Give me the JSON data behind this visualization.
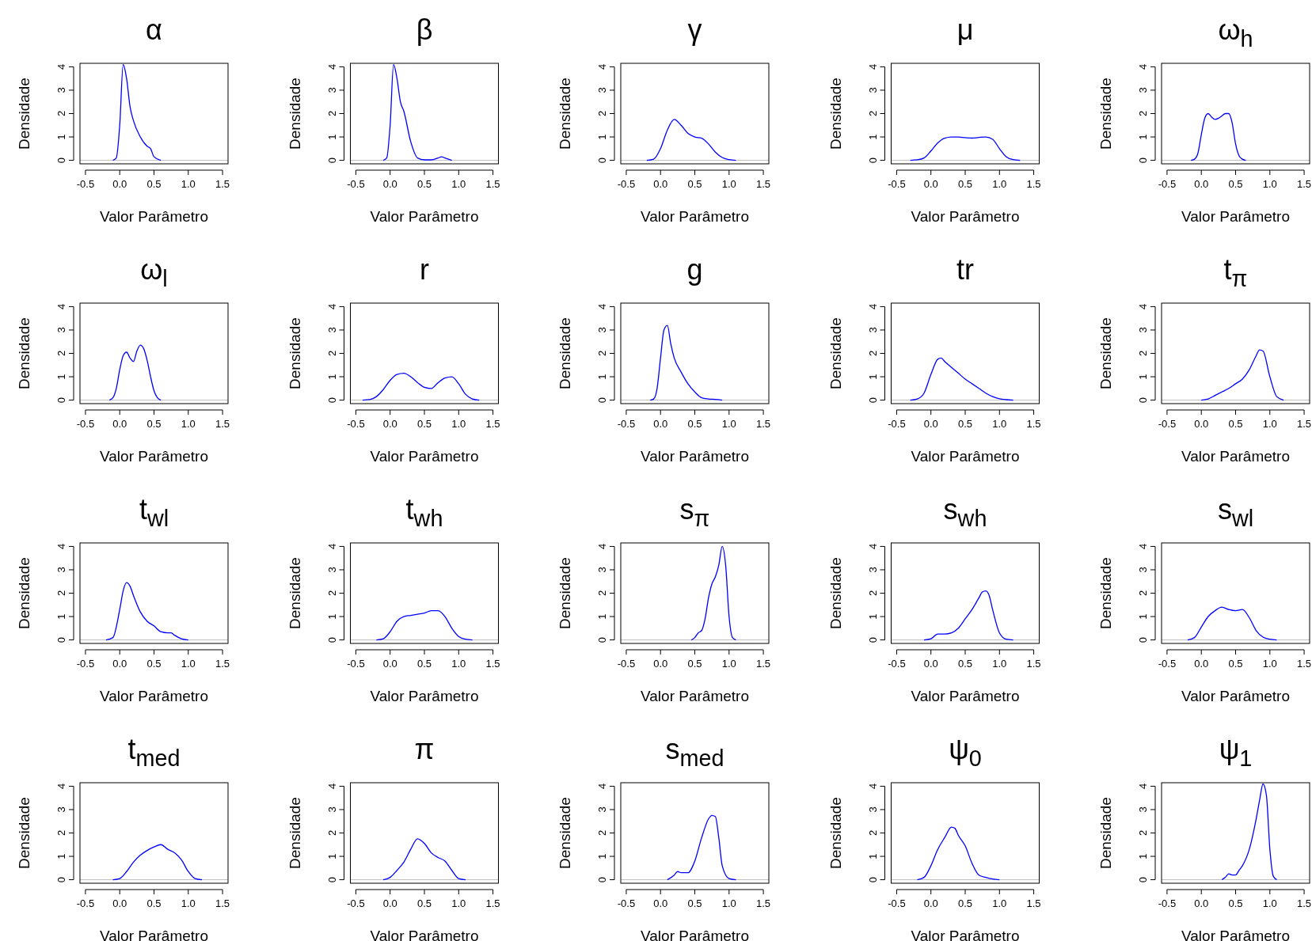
{
  "chart_data": [
    {
      "type": "line",
      "title": "α",
      "xlabel": "Valor Parâmetro",
      "ylabel": "Densidade",
      "x": [
        -0.1,
        -0.05,
        0,
        0.05,
        0.1,
        0.15,
        0.2,
        0.3,
        0.4,
        0.45,
        0.5,
        0.6
      ],
      "series": [
        {
          "color": "#0000ff",
          "values": [
            0,
            0.1,
            1.5,
            4.1,
            3.5,
            2.3,
            1.7,
            1.0,
            0.6,
            0.5,
            0.15,
            0
          ]
        }
      ],
      "xlim": [
        -0.58,
        1.58
      ],
      "ylim": [
        -0.15,
        4.15
      ],
      "xticks": [
        {
          "value": -0.5,
          "label": "-0.5"
        },
        {
          "value": 0,
          "label": "0.0"
        },
        {
          "value": 0.5,
          "label": "0.5"
        },
        {
          "value": 1,
          "label": "1.0"
        },
        {
          "value": 1.5,
          "label": "1.5"
        }
      ],
      "yticks": [
        0,
        1,
        2,
        3,
        4
      ],
      "ref_lines": [
        {
          "axis": "y",
          "value": 0,
          "color": "#bebebe"
        }
      ]
    },
    {
      "type": "line",
      "title": "β",
      "xlabel": "Valor Parâmetro",
      "ylabel": "Densidade",
      "x": [
        -0.1,
        -0.05,
        0,
        0.05,
        0.1,
        0.15,
        0.2,
        0.3,
        0.4,
        0.5,
        0.6,
        0.7,
        0.75,
        0.8,
        0.9
      ],
      "series": [
        {
          "color": "#0000ff",
          "values": [
            0,
            0.1,
            1.5,
            4.1,
            3.5,
            2.5,
            2.1,
            0.8,
            0.1,
            0.02,
            0.02,
            0.1,
            0.15,
            0.1,
            0
          ]
        }
      ],
      "xlim": [
        -0.58,
        1.58
      ],
      "ylim": [
        -0.15,
        4.15
      ],
      "xticks": [
        {
          "value": -0.5,
          "label": "-0.5"
        },
        {
          "value": 0,
          "label": "0.0"
        },
        {
          "value": 0.5,
          "label": "0.5"
        },
        {
          "value": 1,
          "label": "1.0"
        },
        {
          "value": 1.5,
          "label": "1.5"
        }
      ],
      "yticks": [
        0,
        1,
        2,
        3,
        4
      ],
      "ref_lines": [
        {
          "axis": "y",
          "value": 0,
          "color": "#bebebe"
        }
      ]
    },
    {
      "type": "line",
      "title": "γ",
      "xlabel": "Valor Parâmetro",
      "ylabel": "Densidade",
      "x": [
        -0.2,
        -0.1,
        0,
        0.1,
        0.2,
        0.3,
        0.4,
        0.5,
        0.6,
        0.7,
        0.8,
        0.9,
        1.0,
        1.1
      ],
      "series": [
        {
          "color": "#0000ff",
          "values": [
            0,
            0.05,
            0.5,
            1.3,
            1.75,
            1.5,
            1.15,
            1.0,
            0.95,
            0.7,
            0.35,
            0.12,
            0.03,
            0
          ]
        }
      ],
      "xlim": [
        -0.58,
        1.58
      ],
      "ylim": [
        -0.15,
        4.15
      ],
      "xticks": [
        {
          "value": -0.5,
          "label": "-0.5"
        },
        {
          "value": 0,
          "label": "0.0"
        },
        {
          "value": 0.5,
          "label": "0.5"
        },
        {
          "value": 1,
          "label": "1.0"
        },
        {
          "value": 1.5,
          "label": "1.5"
        }
      ],
      "yticks": [
        0,
        1,
        2,
        3,
        4
      ],
      "ref_lines": [
        {
          "axis": "y",
          "value": 0,
          "color": "#bebebe"
        }
      ]
    },
    {
      "type": "line",
      "title": "μ",
      "xlabel": "Valor Parâmetro",
      "ylabel": "Densidade",
      "x": [
        -0.3,
        -0.2,
        -0.1,
        0,
        0.1,
        0.2,
        0.3,
        0.4,
        0.5,
        0.6,
        0.7,
        0.8,
        0.9,
        1.0,
        1.1,
        1.2,
        1.3
      ],
      "series": [
        {
          "color": "#0000ff",
          "values": [
            0,
            0.02,
            0.1,
            0.4,
            0.75,
            0.95,
            1.0,
            1.0,
            0.97,
            0.95,
            0.98,
            1.0,
            0.9,
            0.5,
            0.15,
            0.03,
            0
          ]
        }
      ],
      "xlim": [
        -0.58,
        1.58
      ],
      "ylim": [
        -0.15,
        4.15
      ],
      "xticks": [
        {
          "value": -0.5,
          "label": "-0.5"
        },
        {
          "value": 0,
          "label": "0.0"
        },
        {
          "value": 0.5,
          "label": "0.5"
        },
        {
          "value": 1,
          "label": "1.0"
        },
        {
          "value": 1.5,
          "label": "1.5"
        }
      ],
      "yticks": [
        0,
        1,
        2,
        3,
        4
      ],
      "ref_lines": [
        {
          "axis": "y",
          "value": 0,
          "color": "#bebebe"
        }
      ]
    },
    {
      "type": "line",
      "title": "ω$_{h}$",
      "xlabel": "Valor Parâmetro",
      "ylabel": "Densidade",
      "x": [
        -0.15,
        -0.1,
        -0.05,
        0,
        0.05,
        0.1,
        0.15,
        0.2,
        0.25,
        0.3,
        0.35,
        0.4,
        0.45,
        0.5,
        0.55,
        0.6,
        0.65
      ],
      "series": [
        {
          "color": "#0000ff",
          "values": [
            0,
            0.05,
            0.3,
            1.1,
            1.8,
            2.0,
            1.85,
            1.75,
            1.8,
            1.9,
            2.0,
            2.0,
            1.6,
            0.7,
            0.2,
            0.05,
            0
          ]
        }
      ],
      "xlim": [
        -0.58,
        1.58
      ],
      "ylim": [
        -0.15,
        4.15
      ],
      "xticks": [
        {
          "value": -0.5,
          "label": "-0.5"
        },
        {
          "value": 0,
          "label": "0.0"
        },
        {
          "value": 0.5,
          "label": "0.5"
        },
        {
          "value": 1,
          "label": "1.0"
        },
        {
          "value": 1.5,
          "label": "1.5"
        }
      ],
      "yticks": [
        0,
        1,
        2,
        3,
        4
      ],
      "ref_lines": [
        {
          "axis": "y",
          "value": 0,
          "color": "#bebebe"
        }
      ]
    },
    {
      "type": "line",
      "title": "ω$_{l}$",
      "xlabel": "Valor Parâmetro",
      "ylabel": "Densidade",
      "x": [
        -0.15,
        -0.1,
        -0.05,
        0,
        0.05,
        0.1,
        0.15,
        0.2,
        0.25,
        0.3,
        0.35,
        0.4,
        0.45,
        0.5,
        0.55,
        0.6
      ],
      "series": [
        {
          "color": "#0000ff",
          "values": [
            0,
            0.1,
            0.5,
            1.3,
            1.9,
            2.05,
            1.8,
            1.65,
            2.1,
            2.35,
            2.2,
            1.7,
            1.0,
            0.4,
            0.1,
            0
          ]
        }
      ],
      "xlim": [
        -0.58,
        1.58
      ],
      "ylim": [
        -0.15,
        4.15
      ],
      "xticks": [
        {
          "value": -0.5,
          "label": "-0.5"
        },
        {
          "value": 0,
          "label": "0.0"
        },
        {
          "value": 0.5,
          "label": "0.5"
        },
        {
          "value": 1,
          "label": "1.0"
        },
        {
          "value": 1.5,
          "label": "1.5"
        }
      ],
      "yticks": [
        0,
        1,
        2,
        3,
        4
      ],
      "ref_lines": [
        {
          "axis": "y",
          "value": 0,
          "color": "#bebebe"
        }
      ]
    },
    {
      "type": "line",
      "title": "r",
      "xlabel": "Valor Parâmetro",
      "ylabel": "Densidade",
      "x": [
        -0.4,
        -0.3,
        -0.2,
        -0.1,
        0,
        0.1,
        0.2,
        0.3,
        0.4,
        0.5,
        0.6,
        0.7,
        0.8,
        0.9,
        1.0,
        1.1,
        1.2,
        1.3
      ],
      "series": [
        {
          "color": "#0000ff",
          "values": [
            0,
            0.02,
            0.15,
            0.45,
            0.85,
            1.1,
            1.15,
            1.0,
            0.75,
            0.55,
            0.5,
            0.75,
            0.95,
            1.0,
            0.7,
            0.25,
            0.05,
            0
          ]
        }
      ],
      "xlim": [
        -0.58,
        1.58
      ],
      "ylim": [
        -0.15,
        4.15
      ],
      "xticks": [
        {
          "value": -0.5,
          "label": "-0.5"
        },
        {
          "value": 0,
          "label": "0.0"
        },
        {
          "value": 0.5,
          "label": "0.5"
        },
        {
          "value": 1,
          "label": "1.0"
        },
        {
          "value": 1.5,
          "label": "1.5"
        }
      ],
      "yticks": [
        0,
        1,
        2,
        3,
        4
      ],
      "ref_lines": [
        {
          "axis": "y",
          "value": 0,
          "color": "#bebebe"
        }
      ]
    },
    {
      "type": "line",
      "title": "g",
      "xlabel": "Valor Parâmetro",
      "ylabel": "Densidade",
      "x": [
        -0.15,
        -0.1,
        -0.05,
        0,
        0.05,
        0.1,
        0.15,
        0.2,
        0.3,
        0.4,
        0.5,
        0.6,
        0.7,
        0.8,
        0.9
      ],
      "series": [
        {
          "color": "#0000ff",
          "values": [
            0,
            0.05,
            0.5,
            1.8,
            3.0,
            3.2,
            2.4,
            1.8,
            1.2,
            0.7,
            0.35,
            0.1,
            0.05,
            0.03,
            0
          ]
        }
      ],
      "xlim": [
        -0.58,
        1.58
      ],
      "ylim": [
        -0.15,
        4.15
      ],
      "xticks": [
        {
          "value": -0.5,
          "label": "-0.5"
        },
        {
          "value": 0,
          "label": "0.0"
        },
        {
          "value": 0.5,
          "label": "0.5"
        },
        {
          "value": 1,
          "label": "1.0"
        },
        {
          "value": 1.5,
          "label": "1.5"
        }
      ],
      "yticks": [
        0,
        1,
        2,
        3,
        4
      ],
      "ref_lines": [
        {
          "axis": "y",
          "value": 0,
          "color": "#bebebe"
        }
      ]
    },
    {
      "type": "line",
      "title": "tr",
      "xlabel": "Valor Parâmetro",
      "ylabel": "Densidade",
      "x": [
        -0.3,
        -0.2,
        -0.1,
        0,
        0.1,
        0.15,
        0.2,
        0.3,
        0.4,
        0.5,
        0.6,
        0.7,
        0.8,
        0.9,
        1.0,
        1.1,
        1.2
      ],
      "series": [
        {
          "color": "#0000ff",
          "values": [
            0,
            0.05,
            0.3,
            1.1,
            1.75,
            1.8,
            1.65,
            1.4,
            1.15,
            0.9,
            0.7,
            0.5,
            0.3,
            0.15,
            0.06,
            0.02,
            0
          ]
        }
      ],
      "xlim": [
        -0.58,
        1.58
      ],
      "ylim": [
        -0.15,
        4.15
      ],
      "xticks": [
        {
          "value": -0.5,
          "label": "-0.5"
        },
        {
          "value": 0,
          "label": "0.0"
        },
        {
          "value": 0.5,
          "label": "0.5"
        },
        {
          "value": 1,
          "label": "1.0"
        },
        {
          "value": 1.5,
          "label": "1.5"
        }
      ],
      "yticks": [
        0,
        1,
        2,
        3,
        4
      ],
      "ref_lines": [
        {
          "axis": "y",
          "value": 0,
          "color": "#bebebe"
        }
      ]
    },
    {
      "type": "line",
      "title": "t$_{π}$",
      "xlabel": "Valor Parâmetro",
      "ylabel": "Densidade",
      "x": [
        0,
        0.1,
        0.2,
        0.3,
        0.4,
        0.5,
        0.6,
        0.7,
        0.8,
        0.85,
        0.9,
        1.0,
        1.1,
        1.2
      ],
      "series": [
        {
          "color": "#0000ff",
          "values": [
            0,
            0.05,
            0.2,
            0.35,
            0.5,
            0.7,
            0.9,
            1.3,
            1.9,
            2.15,
            2.1,
            1.0,
            0.15,
            0
          ]
        }
      ],
      "xlim": [
        -0.58,
        1.58
      ],
      "ylim": [
        -0.15,
        4.15
      ],
      "xticks": [
        {
          "value": -0.5,
          "label": "-0.5"
        },
        {
          "value": 0,
          "label": "0.0"
        },
        {
          "value": 0.5,
          "label": "0.5"
        },
        {
          "value": 1,
          "label": "1.0"
        },
        {
          "value": 1.5,
          "label": "1.5"
        }
      ],
      "yticks": [
        0,
        1,
        2,
        3,
        4
      ],
      "ref_lines": [
        {
          "axis": "y",
          "value": 0,
          "color": "#bebebe"
        }
      ]
    },
    {
      "type": "line",
      "title": "t$_{wl}$",
      "xlabel": "Valor Parâmetro",
      "ylabel": "Densidade",
      "x": [
        -0.2,
        -0.1,
        0,
        0.05,
        0.1,
        0.15,
        0.2,
        0.3,
        0.4,
        0.5,
        0.6,
        0.7,
        0.75,
        0.8,
        0.9,
        1.0
      ],
      "series": [
        {
          "color": "#0000ff",
          "values": [
            0,
            0.1,
            1.3,
            2.1,
            2.45,
            2.3,
            1.9,
            1.2,
            0.8,
            0.6,
            0.35,
            0.3,
            0.3,
            0.2,
            0.05,
            0
          ]
        }
      ],
      "xlim": [
        -0.58,
        1.58
      ],
      "ylim": [
        -0.15,
        4.15
      ],
      "xticks": [
        {
          "value": -0.5,
          "label": "-0.5"
        },
        {
          "value": 0,
          "label": "0.0"
        },
        {
          "value": 0.5,
          "label": "0.5"
        },
        {
          "value": 1,
          "label": "1.0"
        },
        {
          "value": 1.5,
          "label": "1.5"
        }
      ],
      "yticks": [
        0,
        1,
        2,
        3,
        4
      ],
      "ref_lines": [
        {
          "axis": "y",
          "value": 0,
          "color": "#bebebe"
        }
      ]
    },
    {
      "type": "line",
      "title": "t$_{wh}$",
      "xlabel": "Valor Parâmetro",
      "ylabel": "Densidade",
      "x": [
        -0.2,
        -0.1,
        0,
        0.1,
        0.2,
        0.3,
        0.4,
        0.5,
        0.6,
        0.7,
        0.8,
        0.9,
        1.0,
        1.1,
        1.2
      ],
      "series": [
        {
          "color": "#0000ff",
          "values": [
            0,
            0.05,
            0.35,
            0.8,
            1.0,
            1.05,
            1.1,
            1.15,
            1.25,
            1.25,
            1.0,
            0.5,
            0.15,
            0.03,
            0
          ]
        }
      ],
      "xlim": [
        -0.58,
        1.58
      ],
      "ylim": [
        -0.15,
        4.15
      ],
      "xticks": [
        {
          "value": -0.5,
          "label": "-0.5"
        },
        {
          "value": 0,
          "label": "0.0"
        },
        {
          "value": 0.5,
          "label": "0.5"
        },
        {
          "value": 1,
          "label": "1.0"
        },
        {
          "value": 1.5,
          "label": "1.5"
        }
      ],
      "yticks": [
        0,
        1,
        2,
        3,
        4
      ],
      "ref_lines": [
        {
          "axis": "y",
          "value": 0,
          "color": "#bebebe"
        }
      ]
    },
    {
      "type": "line",
      "title": "s$_{π}$",
      "xlabel": "Valor Parâmetro",
      "ylabel": "Densidade",
      "x": [
        0.45,
        0.5,
        0.55,
        0.6,
        0.65,
        0.7,
        0.75,
        0.8,
        0.85,
        0.9,
        0.95,
        1.0,
        1.05,
        1.1
      ],
      "series": [
        {
          "color": "#0000ff",
          "values": [
            0,
            0.1,
            0.3,
            0.4,
            0.9,
            1.8,
            2.4,
            2.7,
            3.2,
            4.0,
            3.2,
            1.0,
            0.1,
            0
          ]
        }
      ],
      "xlim": [
        -0.58,
        1.58
      ],
      "ylim": [
        -0.15,
        4.15
      ],
      "xticks": [
        {
          "value": -0.5,
          "label": "-0.5"
        },
        {
          "value": 0,
          "label": "0.0"
        },
        {
          "value": 0.5,
          "label": "0.5"
        },
        {
          "value": 1,
          "label": "1.0"
        },
        {
          "value": 1.5,
          "label": "1.5"
        }
      ],
      "yticks": [
        0,
        1,
        2,
        3,
        4
      ],
      "ref_lines": [
        {
          "axis": "y",
          "value": 0,
          "color": "#bebebe"
        }
      ]
    },
    {
      "type": "line",
      "title": "s$_{wh}$",
      "xlabel": "Valor Parâmetro",
      "ylabel": "Densidade",
      "x": [
        -0.1,
        0,
        0.1,
        0.2,
        0.3,
        0.4,
        0.5,
        0.6,
        0.7,
        0.75,
        0.8,
        0.85,
        0.9,
        1.0,
        1.1,
        1.2
      ],
      "series": [
        {
          "color": "#0000ff",
          "values": [
            0,
            0.05,
            0.25,
            0.25,
            0.3,
            0.5,
            0.9,
            1.3,
            1.8,
            2.05,
            2.1,
            1.9,
            1.3,
            0.3,
            0.03,
            0
          ]
        }
      ],
      "xlim": [
        -0.58,
        1.58
      ],
      "ylim": [
        -0.15,
        4.15
      ],
      "xticks": [
        {
          "value": -0.5,
          "label": "-0.5"
        },
        {
          "value": 0,
          "label": "0.0"
        },
        {
          "value": 0.5,
          "label": "0.5"
        },
        {
          "value": 1,
          "label": "1.0"
        },
        {
          "value": 1.5,
          "label": "1.5"
        }
      ],
      "yticks": [
        0,
        1,
        2,
        3,
        4
      ],
      "ref_lines": [
        {
          "axis": "y",
          "value": 0,
          "color": "#bebebe"
        }
      ]
    },
    {
      "type": "line",
      "title": "s$_{wl}$",
      "xlabel": "Valor Parâmetro",
      "ylabel": "Densidade",
      "x": [
        -0.2,
        -0.1,
        0,
        0.1,
        0.2,
        0.3,
        0.4,
        0.5,
        0.6,
        0.7,
        0.8,
        0.9,
        1.0,
        1.1
      ],
      "series": [
        {
          "color": "#0000ff",
          "values": [
            0,
            0.1,
            0.55,
            1.0,
            1.25,
            1.4,
            1.3,
            1.25,
            1.3,
            0.95,
            0.4,
            0.12,
            0.03,
            0
          ]
        }
      ],
      "xlim": [
        -0.58,
        1.58
      ],
      "ylim": [
        -0.15,
        4.15
      ],
      "xticks": [
        {
          "value": -0.5,
          "label": "-0.5"
        },
        {
          "value": 0,
          "label": "0.0"
        },
        {
          "value": 0.5,
          "label": "0.5"
        },
        {
          "value": 1,
          "label": "1.0"
        },
        {
          "value": 1.5,
          "label": "1.5"
        }
      ],
      "yticks": [
        0,
        1,
        2,
        3,
        4
      ],
      "ref_lines": [
        {
          "axis": "y",
          "value": 0,
          "color": "#bebebe"
        }
      ]
    },
    {
      "type": "line",
      "title": "t$_{med}$",
      "xlabel": "Valor Parâmetro",
      "ylabel": "Densidade",
      "x": [
        -0.1,
        0,
        0.1,
        0.2,
        0.3,
        0.4,
        0.5,
        0.6,
        0.7,
        0.8,
        0.9,
        1.0,
        1.1,
        1.2
      ],
      "series": [
        {
          "color": "#0000ff",
          "values": [
            0,
            0.05,
            0.35,
            0.75,
            1.05,
            1.25,
            1.4,
            1.5,
            1.3,
            1.15,
            0.85,
            0.35,
            0.05,
            0
          ]
        }
      ],
      "xlim": [
        -0.58,
        1.58
      ],
      "ylim": [
        -0.15,
        4.15
      ],
      "xticks": [
        {
          "value": -0.5,
          "label": "-0.5"
        },
        {
          "value": 0,
          "label": "0.0"
        },
        {
          "value": 0.5,
          "label": "0.5"
        },
        {
          "value": 1,
          "label": "1.0"
        },
        {
          "value": 1.5,
          "label": "1.5"
        }
      ],
      "yticks": [
        0,
        1,
        2,
        3,
        4
      ],
      "ref_lines": [
        {
          "axis": "y",
          "value": 0,
          "color": "#bebebe"
        }
      ]
    },
    {
      "type": "line",
      "title": "π",
      "xlabel": "Valor Parâmetro",
      "ylabel": "Densidade",
      "x": [
        -0.1,
        0,
        0.1,
        0.2,
        0.3,
        0.4,
        0.5,
        0.6,
        0.7,
        0.8,
        0.9,
        1.0,
        1.1
      ],
      "series": [
        {
          "color": "#0000ff",
          "values": [
            0,
            0.1,
            0.4,
            0.75,
            1.3,
            1.75,
            1.55,
            1.15,
            0.95,
            0.8,
            0.4,
            0.05,
            0
          ]
        }
      ],
      "xlim": [
        -0.58,
        1.58
      ],
      "ylim": [
        -0.15,
        4.15
      ],
      "xticks": [
        {
          "value": -0.5,
          "label": "-0.5"
        },
        {
          "value": 0,
          "label": "0.0"
        },
        {
          "value": 0.5,
          "label": "0.5"
        },
        {
          "value": 1,
          "label": "1.0"
        },
        {
          "value": 1.5,
          "label": "1.5"
        }
      ],
      "yticks": [
        0,
        1,
        2,
        3,
        4
      ],
      "ref_lines": [
        {
          "axis": "y",
          "value": 0,
          "color": "#bebebe"
        }
      ]
    },
    {
      "type": "line",
      "title": "s$_{med}$",
      "xlabel": "Valor Parâmetro",
      "ylabel": "Densidade",
      "x": [
        0.1,
        0.2,
        0.25,
        0.3,
        0.35,
        0.4,
        0.5,
        0.6,
        0.7,
        0.75,
        0.8,
        0.85,
        0.9,
        1.0,
        1.1
      ],
      "series": [
        {
          "color": "#0000ff",
          "values": [
            0,
            0.2,
            0.35,
            0.3,
            0.3,
            0.3,
            0.8,
            1.8,
            2.6,
            2.75,
            2.7,
            1.8,
            0.6,
            0.05,
            0
          ]
        }
      ],
      "xlim": [
        -0.58,
        1.58
      ],
      "ylim": [
        -0.15,
        4.15
      ],
      "xticks": [
        {
          "value": -0.5,
          "label": "-0.5"
        },
        {
          "value": 0,
          "label": "0.0"
        },
        {
          "value": 0.5,
          "label": "0.5"
        },
        {
          "value": 1,
          "label": "1.0"
        },
        {
          "value": 1.5,
          "label": "1.5"
        }
      ],
      "yticks": [
        0,
        1,
        2,
        3,
        4
      ],
      "ref_lines": [
        {
          "axis": "y",
          "value": 0,
          "color": "#bebebe"
        }
      ]
    },
    {
      "type": "line",
      "title": "ψ$_{0}$",
      "xlabel": "Valor Parâmetro",
      "ylabel": "Densidade",
      "x": [
        -0.2,
        -0.1,
        0,
        0.1,
        0.2,
        0.3,
        0.35,
        0.4,
        0.5,
        0.6,
        0.7,
        0.8,
        0.9,
        1.0
      ],
      "series": [
        {
          "color": "#0000ff",
          "values": [
            0,
            0.1,
            0.6,
            1.3,
            1.8,
            2.25,
            2.2,
            1.9,
            1.45,
            0.7,
            0.2,
            0.1,
            0.03,
            0
          ]
        }
      ],
      "xlim": [
        -0.58,
        1.58
      ],
      "ylim": [
        -0.15,
        4.15
      ],
      "xticks": [
        {
          "value": -0.5,
          "label": "-0.5"
        },
        {
          "value": 0,
          "label": "0.0"
        },
        {
          "value": 0.5,
          "label": "0.5"
        },
        {
          "value": 1,
          "label": "1.0"
        },
        {
          "value": 1.5,
          "label": "1.5"
        }
      ],
      "yticks": [
        0,
        1,
        2,
        3,
        4
      ],
      "ref_lines": [
        {
          "axis": "y",
          "value": 0,
          "color": "#bebebe"
        }
      ]
    },
    {
      "type": "line",
      "title": "ψ$_{1}$",
      "xlabel": "Valor Parâmetro",
      "ylabel": "Densidade",
      "x": [
        0.3,
        0.35,
        0.4,
        0.45,
        0.5,
        0.55,
        0.6,
        0.7,
        0.8,
        0.85,
        0.9,
        0.95,
        1.0,
        1.05,
        1.1
      ],
      "series": [
        {
          "color": "#0000ff",
          "values": [
            0,
            0.1,
            0.25,
            0.2,
            0.2,
            0.4,
            0.6,
            1.3,
            2.6,
            3.4,
            4.1,
            3.6,
            1.3,
            0.15,
            0
          ]
        }
      ],
      "xlim": [
        -0.58,
        1.58
      ],
      "ylim": [
        -0.15,
        4.15
      ],
      "xticks": [
        {
          "value": -0.5,
          "label": "-0.5"
        },
        {
          "value": 0,
          "label": "0.0"
        },
        {
          "value": 0.5,
          "label": "0.5"
        },
        {
          "value": 1,
          "label": "1.0"
        },
        {
          "value": 1.5,
          "label": "1.5"
        }
      ],
      "yticks": [
        0,
        1,
        2,
        3,
        4
      ],
      "ref_lines": [
        {
          "axis": "y",
          "value": 0,
          "color": "#bebebe"
        }
      ]
    }
  ]
}
